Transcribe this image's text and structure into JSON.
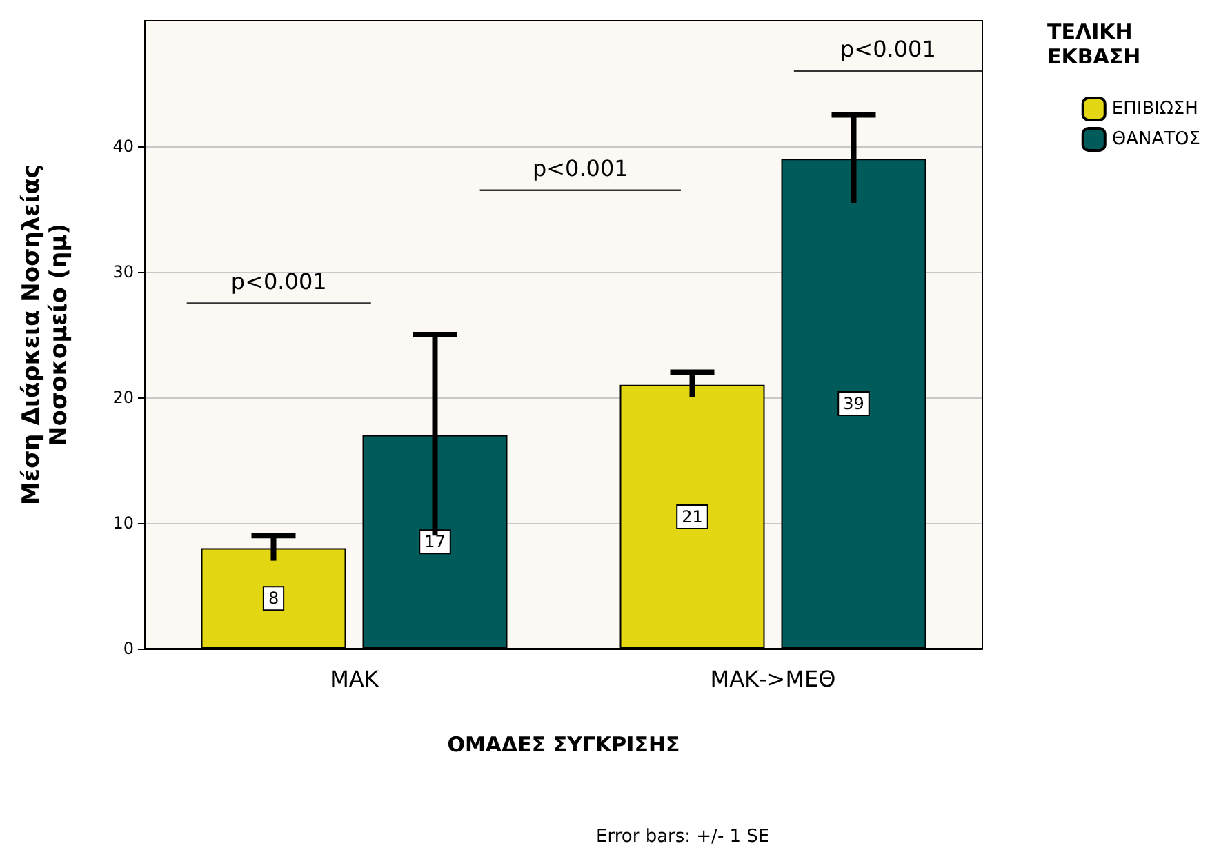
{
  "chart_data": {
    "type": "bar",
    "xlabel": "ΟΜΑΔΕΣ ΣΥΓΚΡΙΣΗΣ",
    "ylabel": "Μέση Διάρκεια Νοσηλείας\nΝοσοκομείο (ημ)",
    "legend_title": "ΤΕΛΙΚΗ ΕΚΒΑΣΗ",
    "categories": [
      "ΜΑΚ",
      "ΜΑΚ->ΜΕΘ"
    ],
    "series": [
      {
        "name": "ΕΠΙΒΙΩΣΗ",
        "color": "#e2d712",
        "values": [
          8,
          21
        ],
        "errors": [
          1,
          1
        ]
      },
      {
        "name": "ΘΑΝΑΤΟΣ",
        "color": "#005b5a",
        "values": [
          17,
          39
        ],
        "errors": [
          8,
          3.5
        ]
      }
    ],
    "ylim": [
      0,
      50
    ],
    "yticks": [
      0,
      10,
      20,
      30,
      40
    ],
    "grid": "y",
    "legend": "top right",
    "data_labels": true,
    "annotations": [
      "p<0.001",
      "p<0.001",
      "p<0.001",
      "Error bars: +/- 1 SE"
    ]
  }
}
